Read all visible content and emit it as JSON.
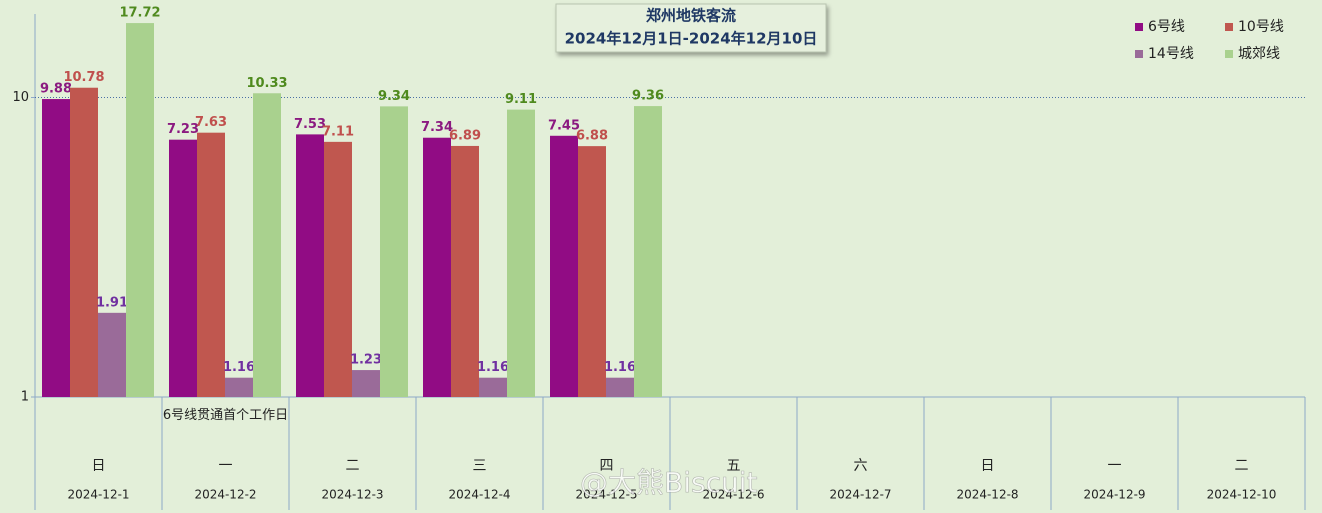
{
  "chart_data": {
    "type": "bar",
    "title": "郑州地铁客流",
    "subtitle": "2024年12月1日-2024年12月10日",
    "categories": [
      "2024-12-1",
      "2024-12-2",
      "2024-12-3",
      "2024-12-4",
      "2024-12-5",
      "2024-12-6",
      "2024-12-7",
      "2024-12-8",
      "2024-12-9",
      "2024-12-10"
    ],
    "weekdays": [
      "日",
      "一",
      "二",
      "三",
      "四",
      "五",
      "六",
      "日",
      "一",
      "二"
    ],
    "annotations": [
      null,
      "6号线贯通首个工作日",
      null,
      null,
      null,
      null,
      null,
      null,
      null,
      null
    ],
    "series": [
      {
        "name": "6号线",
        "color": "#910c84",
        "label_color": "#8b1a80",
        "values": [
          9.88,
          7.23,
          7.53,
          7.34,
          7.45,
          null,
          null,
          null,
          null,
          null
        ]
      },
      {
        "name": "10号线",
        "color": "#c0574f",
        "label_color": "#c0504d",
        "values": [
          10.78,
          7.63,
          7.11,
          6.89,
          6.88,
          null,
          null,
          null,
          null,
          null
        ]
      },
      {
        "name": "14号线",
        "color": "#9a6b99",
        "label_color": "#7030a0",
        "values": [
          1.91,
          1.16,
          1.23,
          1.16,
          1.16,
          null,
          null,
          null,
          null,
          null
        ]
      },
      {
        "name": "城郊线",
        "color": "#a9d18e",
        "label_color": "#4f8a1e",
        "values": [
          17.72,
          10.33,
          9.34,
          9.11,
          9.36,
          null,
          null,
          null,
          null,
          null
        ]
      }
    ],
    "ylim": [
      1,
      19
    ],
    "yticks": [
      1,
      10
    ],
    "log_scale": true,
    "grid": true,
    "legend": "top-right",
    "watermark": "@大熊Biscuit"
  }
}
